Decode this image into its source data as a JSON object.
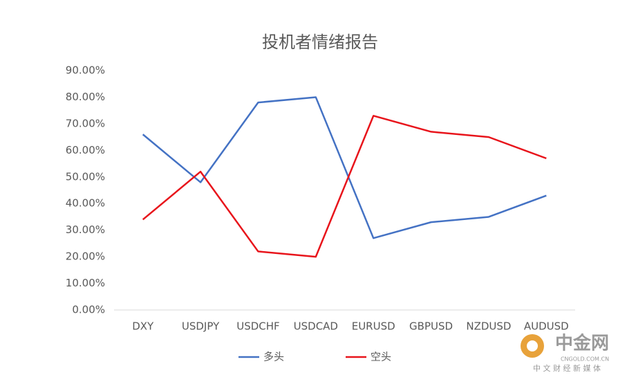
{
  "chart_data": {
    "type": "line",
    "title": "投机者情绪报告",
    "categories": [
      "DXY",
      "USDJPY",
      "USDCHF",
      "USDCAD",
      "EURUSD",
      "GBPUSD",
      "NZDUSD",
      "AUDUSD"
    ],
    "series": [
      {
        "name": "多头",
        "color": "#4472c4",
        "values": [
          66,
          48,
          78,
          80,
          27,
          33,
          35,
          43
        ]
      },
      {
        "name": "空头",
        "color": "#e8141b",
        "values": [
          34,
          52,
          22,
          20,
          73,
          67,
          65,
          57
        ]
      }
    ],
    "ylim": [
      0,
      90
    ],
    "yticks": [
      {
        "value": 0,
        "label": "0.00%"
      },
      {
        "value": 10,
        "label": "10.00%"
      },
      {
        "value": 20,
        "label": "20.00%"
      },
      {
        "value": 30,
        "label": "30.00%"
      },
      {
        "value": 40,
        "label": "40.00%"
      },
      {
        "value": 50,
        "label": "50.00%"
      },
      {
        "value": 60,
        "label": "60.00%"
      },
      {
        "value": 70,
        "label": "70.00%"
      },
      {
        "value": 80,
        "label": "80.00%"
      },
      {
        "value": 90,
        "label": "90.00%"
      }
    ],
    "grid": false,
    "legend": "bottom"
  },
  "watermark": {
    "name": "中金网",
    "site": "CNGOLD.COM.CN",
    "slogan": "中 文 财 经 新 媒 体"
  }
}
